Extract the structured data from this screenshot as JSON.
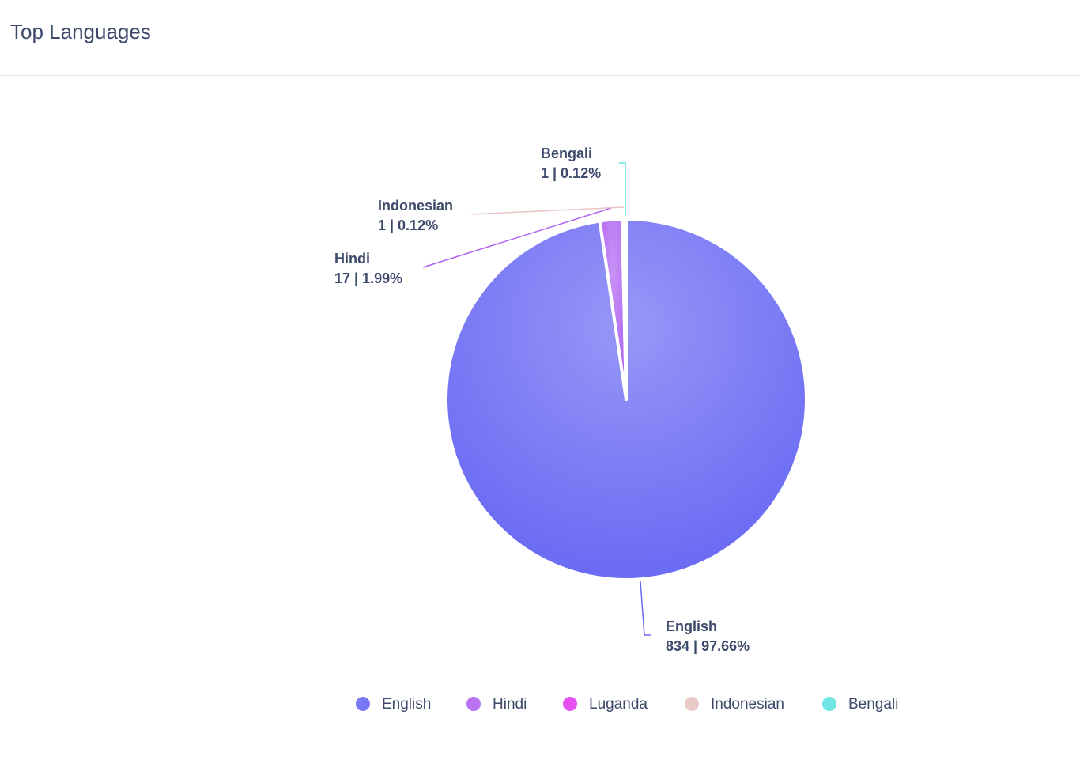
{
  "chart_data": {
    "type": "pie",
    "title": "Top Languages",
    "categories": [
      "English",
      "Hindi",
      "Luganda",
      "Indonesian",
      "Bengali"
    ],
    "values": [
      834,
      17,
      1,
      1,
      1
    ],
    "value_labels": [
      "834 | 97.66%",
      "17 | 1.99%",
      null,
      "1 | 0.12%",
      "1 | 0.12%"
    ],
    "colors": [
      "#6a6af4",
      "#b063f1",
      "#e23df0",
      "#e8c4c2",
      "#62e2e0"
    ],
    "legend": "bottom"
  }
}
